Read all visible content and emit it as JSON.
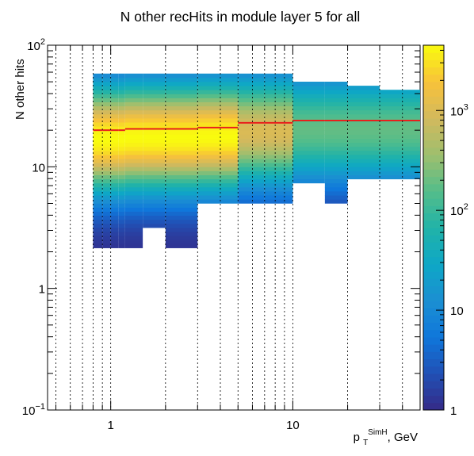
{
  "chart_data": {
    "type": "heatmap",
    "title": "N other recHits in module layer 5 for all",
    "xlabel": "p_T^SimH, GeV",
    "xlabel_parts": {
      "base": "p",
      "sub": "T",
      "sup": "SimH",
      "suffix": ", GeV"
    },
    "ylabel": "N other hits",
    "x_scale": "log",
    "y_scale": "log",
    "xlim": [
      0.45,
      50
    ],
    "ylim": [
      0.1,
      100
    ],
    "x_ticks": [
      {
        "value": 1,
        "label": "1"
      },
      {
        "value": 10,
        "label": "10"
      }
    ],
    "y_ticks": [
      {
        "value": 0.1,
        "base": "10",
        "exp": "−1"
      },
      {
        "value": 1,
        "base": "1",
        "exp": ""
      },
      {
        "value": 10,
        "base": "10",
        "exp": ""
      },
      {
        "value": 100,
        "base": "10",
        "exp": "2"
      }
    ],
    "x_gridlines": [
      0.5,
      0.6,
      0.7,
      0.8,
      0.9,
      1,
      2,
      3,
      4,
      5,
      6,
      7,
      8,
      9,
      10,
      20,
      30,
      40
    ],
    "colorbar": {
      "scale": "log",
      "range": [
        1,
        4500
      ],
      "ticks": [
        {
          "value": 1,
          "base": "1",
          "exp": ""
        },
        {
          "value": 10,
          "base": "10",
          "exp": ""
        },
        {
          "value": 100,
          "base": "10",
          "exp": "2"
        },
        {
          "value": 1000,
          "base": "10",
          "exp": "3"
        }
      ],
      "palette": [
        "#352a87",
        "#2150b5",
        "#0f77db",
        "#1b8fd2",
        "#0ea7c6",
        "#21b3a8",
        "#54bd8a",
        "#9ebf6e",
        "#d2b95d",
        "#f8c23a",
        "#f9fb0e"
      ]
    },
    "profile_color": "#e8201c",
    "x_bins": [
      [
        0.8,
        0.9
      ],
      [
        0.9,
        1.0
      ],
      [
        1.0,
        1.1
      ],
      [
        1.1,
        1.2
      ],
      [
        1.2,
        1.5
      ],
      [
        1.5,
        2.0
      ],
      [
        2.0,
        3.0
      ],
      [
        3.0,
        5.0
      ],
      [
        5.0,
        7.0
      ],
      [
        7.0,
        10.0
      ],
      [
        10.0,
        15.0
      ],
      [
        15.0,
        20.0
      ],
      [
        20.0,
        30.0
      ],
      [
        30.0,
        50.0
      ]
    ],
    "profile_mean": [
      20,
      20,
      20,
      20,
      20.5,
      20.5,
      20.5,
      21,
      23,
      23,
      24,
      24,
      24,
      24
    ],
    "y_range_per_bin": [
      [
        2.1,
        58
      ],
      [
        2.1,
        58
      ],
      [
        2.1,
        58
      ],
      [
        2.1,
        58
      ],
      [
        2.1,
        58
      ],
      [
        3.1,
        58
      ],
      [
        2.1,
        58
      ],
      [
        5.2,
        58
      ],
      [
        5.2,
        58
      ],
      [
        5.2,
        58
      ],
      [
        7.5,
        52
      ],
      [
        5.2,
        50
      ],
      [
        8.2,
        46
      ],
      [
        8.2,
        44
      ]
    ],
    "peak_count": 4500
  }
}
